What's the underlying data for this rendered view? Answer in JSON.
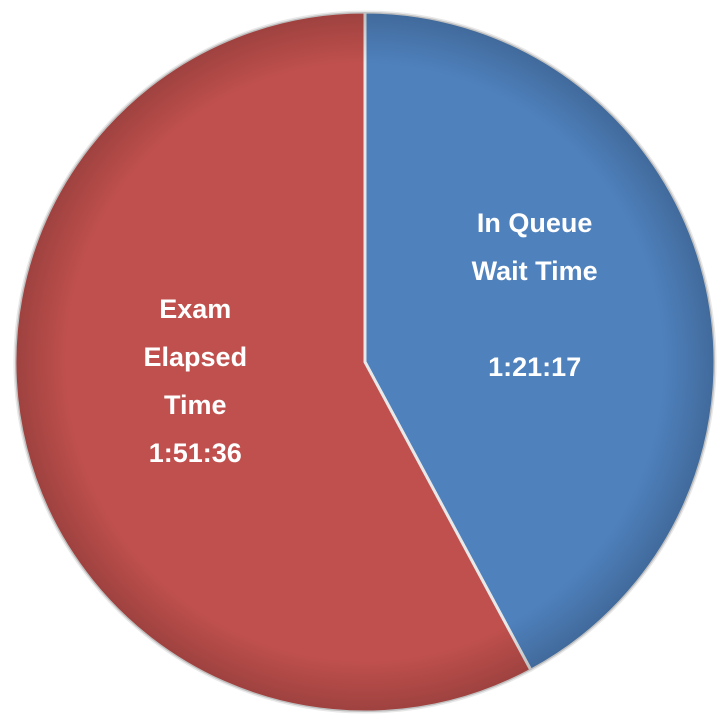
{
  "chart_data": {
    "type": "pie",
    "categories": [
      "In Queue Wait Time",
      "Exam Elapsed Time"
    ],
    "values": [
      4877,
      6696
    ],
    "value_labels": [
      "1:21:17",
      "1:51:36"
    ],
    "colors": [
      "#4f81bd",
      "#c0504d"
    ]
  }
}
